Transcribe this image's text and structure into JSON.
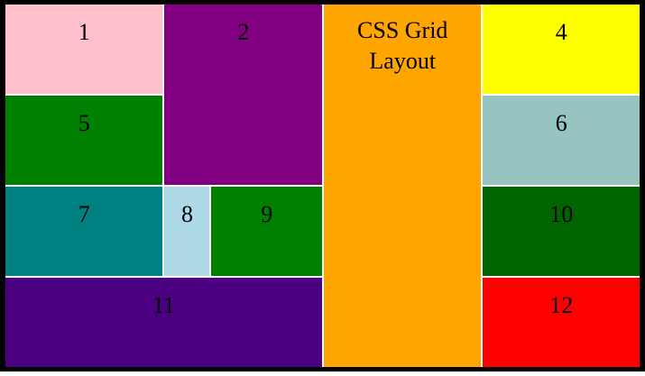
{
  "cells": {
    "c1": "1",
    "c2": "2",
    "c3_line1": "CSS Grid",
    "c3_line2": "Layout",
    "c4": "4",
    "c5": "5",
    "c6": "6",
    "c7": "7",
    "c8": "8",
    "c9": "9",
    "c10": "10",
    "c11": "11",
    "c12": "12"
  },
  "colors": {
    "frame": "#000000",
    "gap": "#ffffff",
    "c1": "#ffc0cb",
    "c2": "#800080",
    "c3": "#ffa500",
    "c4": "#ffff00",
    "c5": "#008000",
    "c6": "#96c4c1",
    "c7": "#008080",
    "c8": "#add8e6",
    "c9": "#008000",
    "c10": "#006400",
    "c11": "#4b0082",
    "c12": "#ff0000"
  }
}
